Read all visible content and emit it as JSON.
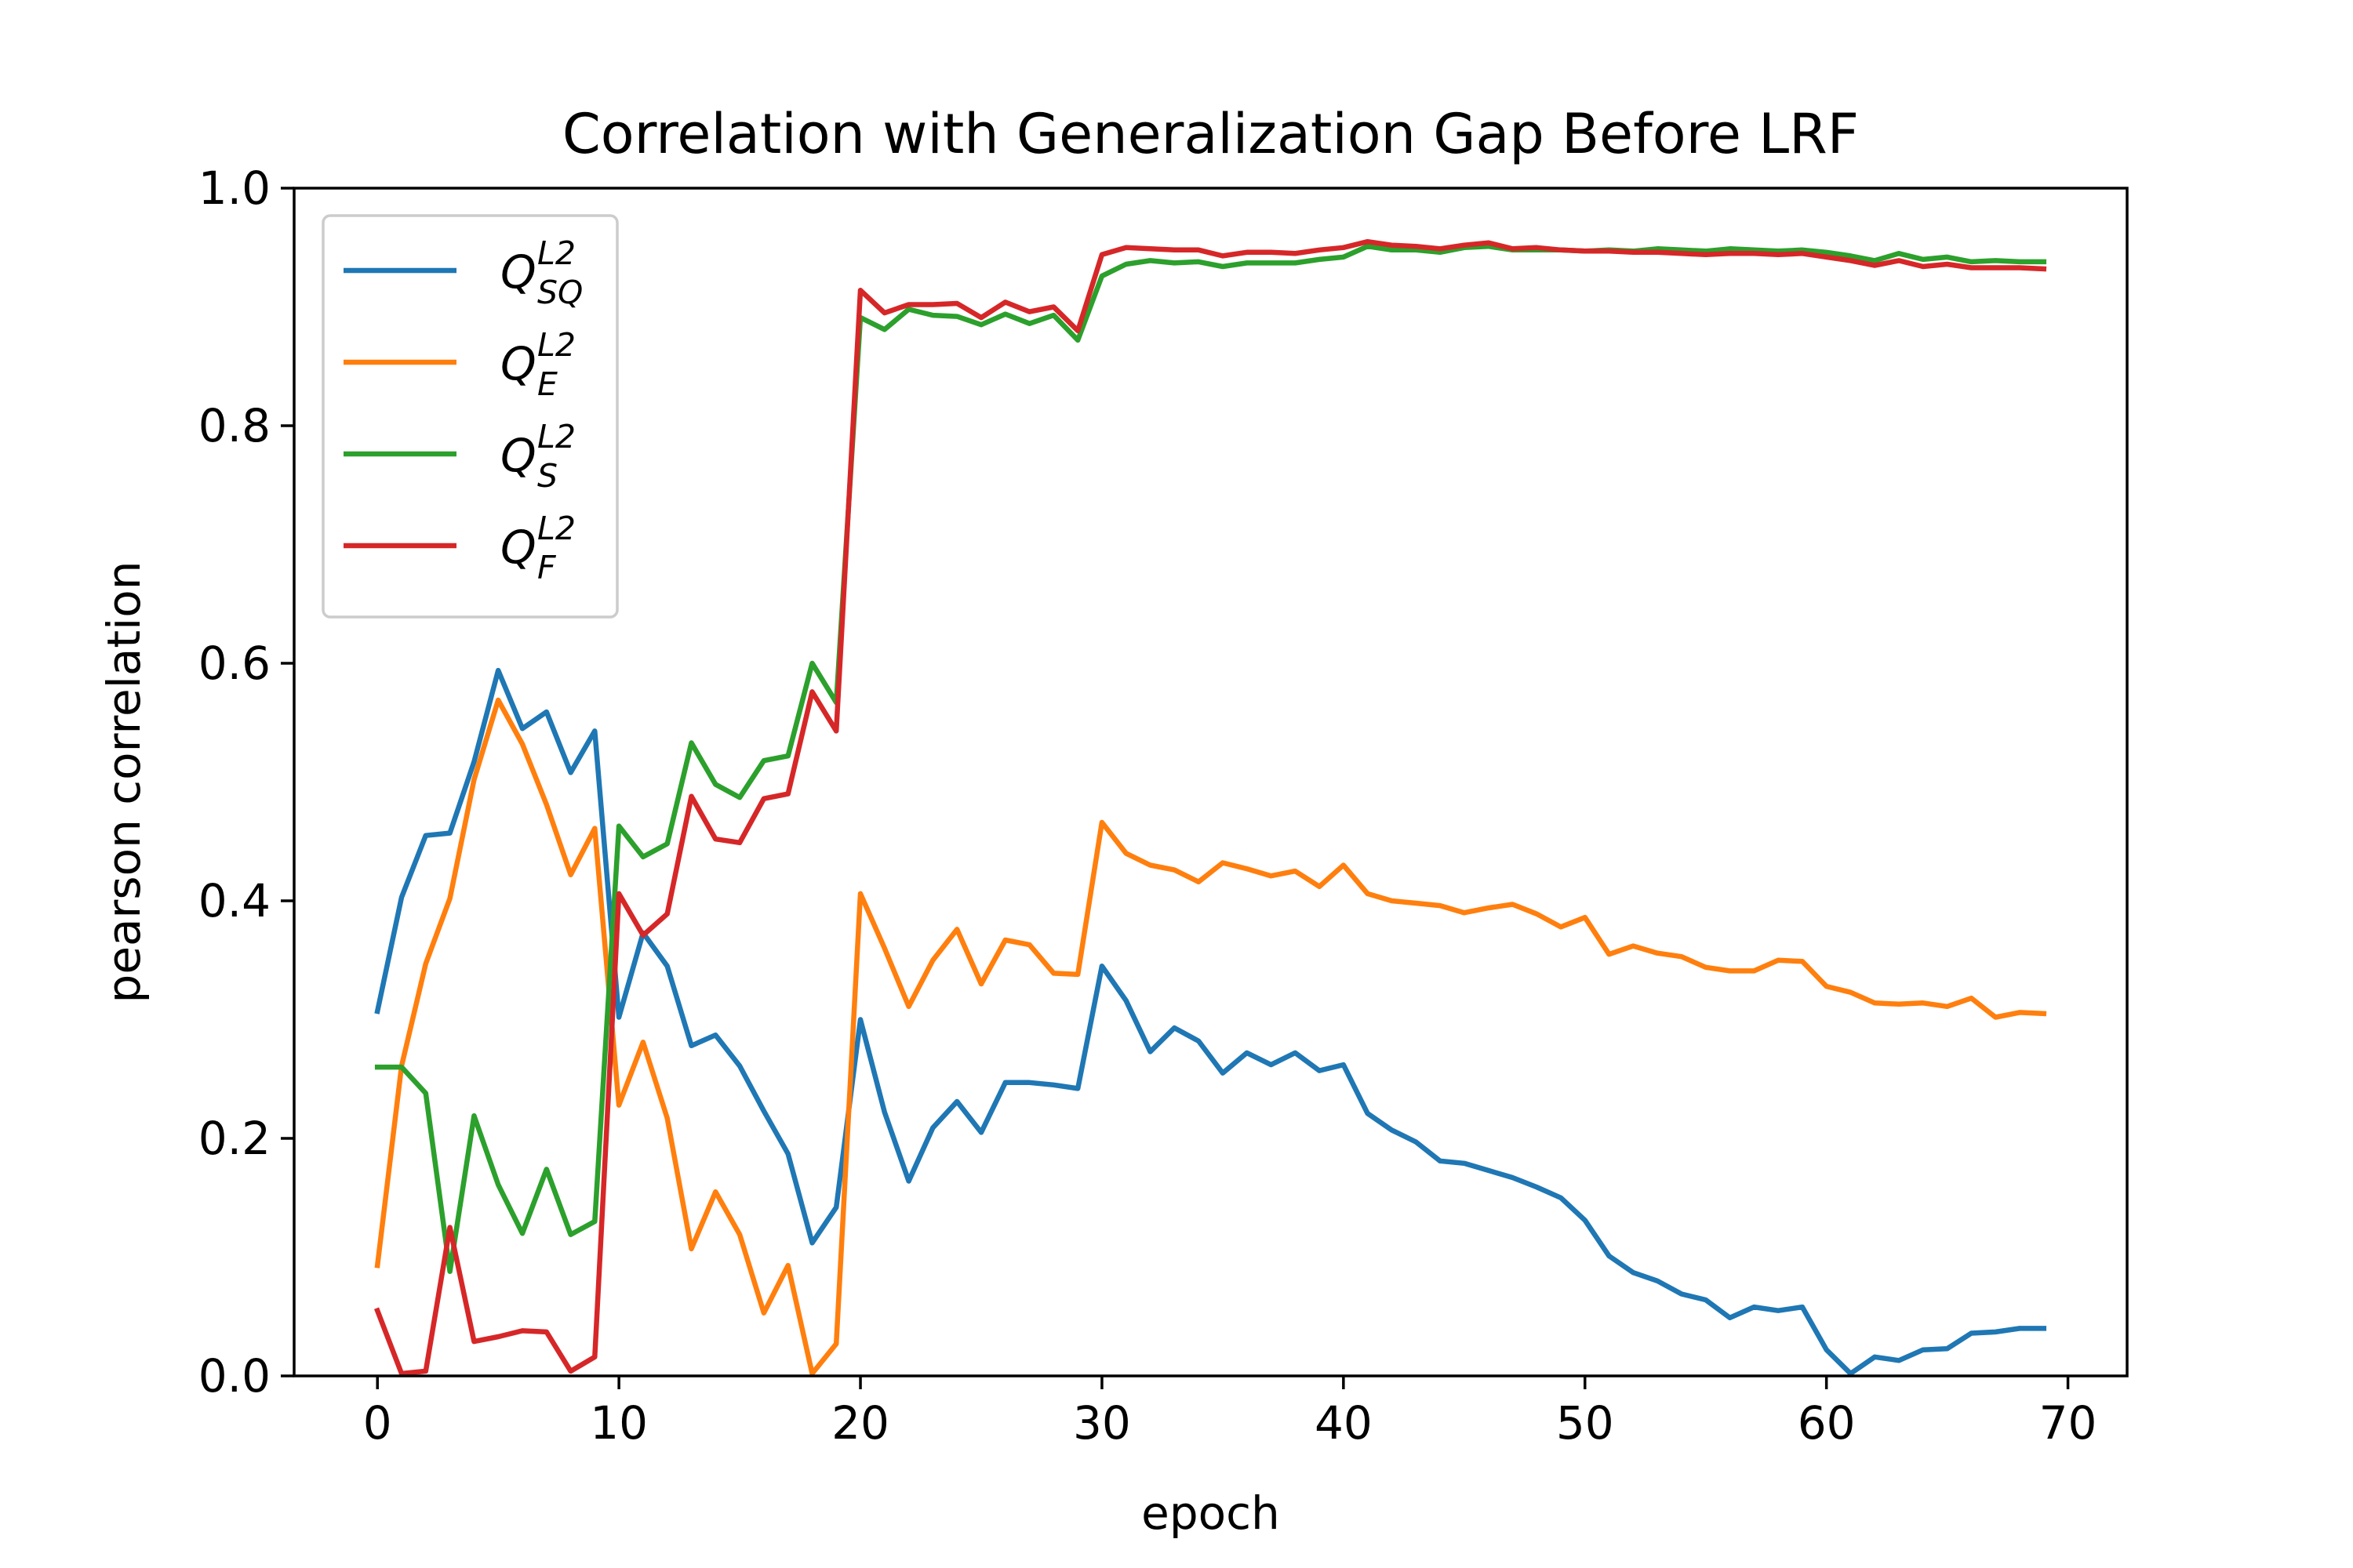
{
  "chart_data": {
    "type": "line",
    "title": "Correlation with Generalization Gap Before LRF",
    "xlabel": "epoch",
    "ylabel": "pearson correlation",
    "xlim": [
      -3.45,
      72.45
    ],
    "ylim": [
      0.0,
      1.0
    ],
    "xticks": [
      0,
      10,
      20,
      30,
      40,
      50,
      60,
      70
    ],
    "xtick_labels": [
      "0",
      "10",
      "20",
      "30",
      "40",
      "50",
      "60",
      "70"
    ],
    "yticks": [
      0.0,
      0.2,
      0.4,
      0.6,
      0.8,
      1.0
    ],
    "ytick_labels": [
      "0.0",
      "0.2",
      "0.4",
      "0.6",
      "0.8",
      "1.0"
    ],
    "grid": false,
    "legend_position": "upper-left",
    "x": [
      0,
      1,
      2,
      3,
      4,
      5,
      6,
      7,
      8,
      9,
      10,
      11,
      12,
      13,
      14,
      15,
      16,
      17,
      18,
      19,
      20,
      21,
      22,
      23,
      24,
      25,
      26,
      27,
      28,
      29,
      30,
      31,
      32,
      33,
      34,
      35,
      36,
      37,
      38,
      39,
      40,
      41,
      42,
      43,
      44,
      45,
      46,
      47,
      48,
      49,
      50,
      51,
      52,
      53,
      54,
      55,
      56,
      57,
      58,
      59,
      60,
      61,
      62,
      63,
      64,
      65,
      66,
      67,
      68,
      69
    ],
    "series": [
      {
        "name": "Q_SQ^L2",
        "legend_base": "Q",
        "legend_sup": "L2",
        "legend_sub": "SQ",
        "color": "#1f77b4",
        "values": [
          0.307,
          0.403,
          0.455,
          0.457,
          0.517,
          0.594,
          0.545,
          0.559,
          0.508,
          0.543,
          0.302,
          0.373,
          0.345,
          0.278,
          0.287,
          0.261,
          0.223,
          0.187,
          0.112,
          0.142,
          0.3,
          0.222,
          0.164,
          0.209,
          0.231,
          0.205,
          0.247,
          0.247,
          0.245,
          0.242,
          0.345,
          0.316,
          0.273,
          0.293,
          0.282,
          0.255,
          0.272,
          0.262,
          0.272,
          0.257,
          0.262,
          0.221,
          0.207,
          0.197,
          0.181,
          0.179,
          0.173,
          0.167,
          0.159,
          0.15,
          0.131,
          0.101,
          0.087,
          0.08,
          0.069,
          0.064,
          0.049,
          0.058,
          0.055,
          0.058,
          0.022,
          0.002,
          0.016,
          0.013,
          0.022,
          0.023,
          0.036,
          0.037,
          0.04,
          0.04
        ]
      },
      {
        "name": "Q_E^L2",
        "legend_base": "Q",
        "legend_sup": "L2",
        "legend_sub": "E",
        "color": "#ff7f0e",
        "values": [
          0.093,
          0.261,
          0.347,
          0.402,
          0.502,
          0.569,
          0.532,
          0.481,
          0.422,
          0.461,
          0.228,
          0.281,
          0.217,
          0.107,
          0.155,
          0.119,
          0.053,
          0.093,
          0.002,
          0.027,
          0.406,
          0.36,
          0.311,
          0.35,
          0.376,
          0.33,
          0.367,
          0.363,
          0.339,
          0.338,
          0.466,
          0.44,
          0.43,
          0.426,
          0.416,
          0.432,
          0.427,
          0.421,
          0.425,
          0.412,
          0.43,
          0.406,
          0.4,
          0.398,
          0.396,
          0.39,
          0.394,
          0.397,
          0.389,
          0.378,
          0.386,
          0.355,
          0.362,
          0.356,
          0.353,
          0.344,
          0.341,
          0.341,
          0.35,
          0.349,
          0.328,
          0.323,
          0.314,
          0.313,
          0.314,
          0.311,
          0.318,
          0.302,
          0.306,
          0.305
        ]
      },
      {
        "name": "Q_S^L2",
        "legend_base": "Q",
        "legend_sup": "L2",
        "legend_sub": "S",
        "color": "#2ca02c",
        "values": [
          0.26,
          0.26,
          0.238,
          0.088,
          0.219,
          0.161,
          0.12,
          0.174,
          0.119,
          0.13,
          0.463,
          0.437,
          0.448,
          0.533,
          0.498,
          0.487,
          0.518,
          0.522,
          0.6,
          0.567,
          0.891,
          0.881,
          0.898,
          0.893,
          0.892,
          0.885,
          0.894,
          0.886,
          0.893,
          0.872,
          0.926,
          0.936,
          0.939,
          0.937,
          0.938,
          0.934,
          0.937,
          0.937,
          0.937,
          0.94,
          0.942,
          0.951,
          0.948,
          0.948,
          0.946,
          0.95,
          0.951,
          0.948,
          0.948,
          0.948,
          0.947,
          0.948,
          0.947,
          0.949,
          0.948,
          0.947,
          0.949,
          0.948,
          0.947,
          0.948,
          0.946,
          0.943,
          0.939,
          0.945,
          0.94,
          0.942,
          0.938,
          0.939,
          0.938,
          0.938
        ]
      },
      {
        "name": "Q_F^L2",
        "legend_base": "Q",
        "legend_sup": "L2",
        "legend_sub": "F",
        "color": "#d62728",
        "values": [
          0.055,
          0.002,
          0.004,
          0.125,
          0.029,
          0.033,
          0.038,
          0.037,
          0.004,
          0.016,
          0.406,
          0.371,
          0.389,
          0.488,
          0.452,
          0.449,
          0.486,
          0.49,
          0.576,
          0.543,
          0.914,
          0.895,
          0.902,
          0.902,
          0.903,
          0.891,
          0.904,
          0.896,
          0.9,
          0.88,
          0.944,
          0.95,
          0.949,
          0.948,
          0.948,
          0.943,
          0.946,
          0.946,
          0.945,
          0.948,
          0.95,
          0.955,
          0.952,
          0.951,
          0.949,
          0.952,
          0.954,
          0.949,
          0.95,
          0.948,
          0.947,
          0.947,
          0.946,
          0.946,
          0.945,
          0.944,
          0.945,
          0.945,
          0.944,
          0.945,
          0.942,
          0.939,
          0.935,
          0.939,
          0.934,
          0.936,
          0.933,
          0.933,
          0.933,
          0.932
        ]
      }
    ]
  }
}
